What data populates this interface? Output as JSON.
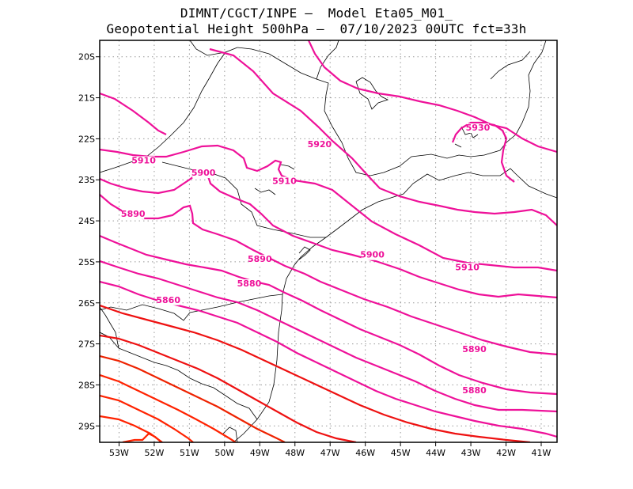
{
  "header": {
    "line1": "DIMNT/CGCT/INPE –  Model Eta05_M01_",
    "line2": "Geopotential Height 500hPa –  07/10/2023 00UTC fct=33h"
  },
  "axes": {
    "lat_labels": [
      "20S",
      "21S",
      "22S",
      "23S",
      "24S",
      "25S",
      "26S",
      "27S",
      "28S",
      "29S"
    ],
    "lon_labels": [
      "53W",
      "52W",
      "51W",
      "50W",
      "49W",
      "48W",
      "47W",
      "46W",
      "45W",
      "44W",
      "43W",
      "42W",
      "41W"
    ]
  },
  "contour_labels": [
    {
      "text": "5930",
      "lon": -42.8,
      "lat": -21.8,
      "color": "#ee1199"
    },
    {
      "text": "5920",
      "lon": -47.3,
      "lat": -22.2,
      "color": "#ee1199"
    },
    {
      "text": "5910",
      "lon": -52.3,
      "lat": -22.6,
      "color": "#ee1199"
    },
    {
      "text": "5900",
      "lon": -50.6,
      "lat": -22.9,
      "color": "#ee1199"
    },
    {
      "text": "5910",
      "lon": -48.3,
      "lat": -23.1,
      "color": "#ee1199"
    },
    {
      "text": "5890",
      "lon": -52.6,
      "lat": -23.9,
      "color": "#ee1199"
    },
    {
      "text": "5890",
      "lon": -49.0,
      "lat": -25.0,
      "color": "#ee1199"
    },
    {
      "text": "5900",
      "lon": -45.8,
      "lat": -24.9,
      "color": "#ee1199"
    },
    {
      "text": "5910",
      "lon": -43.1,
      "lat": -25.2,
      "color": "#ee1199"
    },
    {
      "text": "5880",
      "lon": -49.3,
      "lat": -25.6,
      "color": "#ee1199"
    },
    {
      "text": "5860",
      "lon": -51.6,
      "lat": -26.0,
      "color": "#ee1199"
    },
    {
      "text": "5890",
      "lon": -42.9,
      "lat": -27.2,
      "color": "#ee1199"
    },
    {
      "text": "5880",
      "lon": -42.9,
      "lat": -28.2,
      "color": "#ee1199"
    }
  ],
  "colors": {
    "frame": "#000000",
    "grid": "#999999",
    "coast": "#000000",
    "high": "#ee1199",
    "low": "#ff2200"
  }
}
